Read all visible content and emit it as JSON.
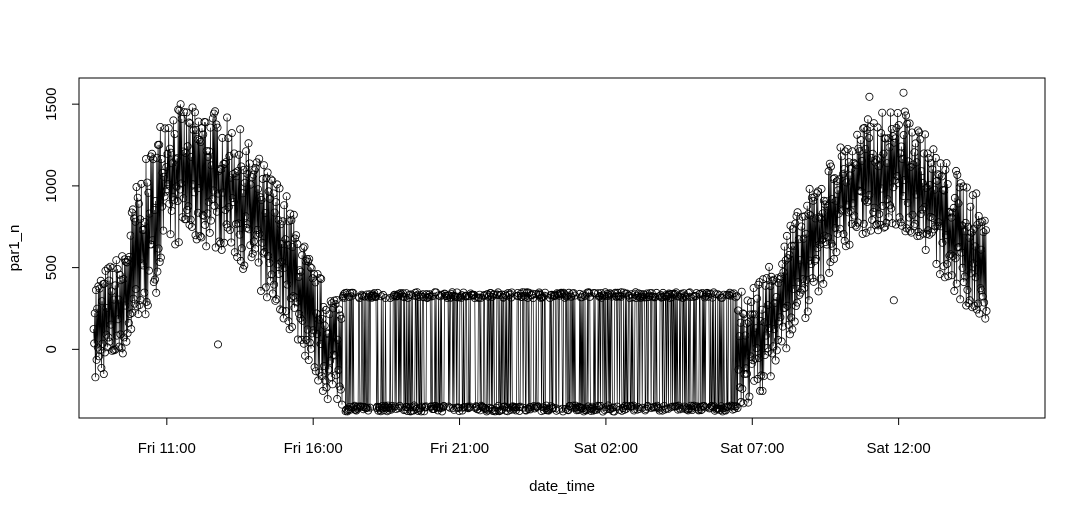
{
  "chart_data": {
    "type": "scatter",
    "style": "points connected by lines (type 'b')",
    "title": "",
    "xlabel": "date_time",
    "ylabel": "par1_n",
    "x_axis": {
      "kind": "datetime",
      "range": [
        "Fri 08:00",
        "Sat 17:00"
      ],
      "ticks": [
        {
          "value": "Fri 11:00",
          "label": "Fri 11:00"
        },
        {
          "value": "Fri 16:00",
          "label": "Fri 16:00"
        },
        {
          "value": "Fri 21:00",
          "label": "Fri 21:00"
        },
        {
          "value": "Sat 02:00",
          "label": "Sat 02:00"
        },
        {
          "value": "Sat 07:00",
          "label": "Sat 07:00"
        },
        {
          "value": "Sat 12:00",
          "label": "Sat 12:00"
        }
      ]
    },
    "y_axis": {
      "range": [
        -420,
        1660
      ],
      "ticks": [
        {
          "value": 0,
          "label": "0"
        },
        {
          "value": 500,
          "label": "500"
        },
        {
          "value": 1000,
          "label": "1000"
        },
        {
          "value": 1500,
          "label": "1500"
        }
      ]
    },
    "grid": false,
    "legend": "none",
    "series": [
      {
        "x_range": [
          "Fri 08:30",
          "Sat 15:00"
        ],
        "upper_envelope": [
          {
            "x": "Fri 08:30",
            "y": 430
          },
          {
            "x": "Fri 09:00",
            "y": 520
          },
          {
            "x": "Fri 09:30",
            "y": 600
          },
          {
            "x": "Fri 10:00",
            "y": 1050
          },
          {
            "x": "Fri 10:30",
            "y": 1250
          },
          {
            "x": "Fri 11:00",
            "y": 1540
          },
          {
            "x": "Fri 11:30",
            "y": 1500
          },
          {
            "x": "Fri 12:00",
            "y": 1480
          },
          {
            "x": "Fri 12:30",
            "y": 1490
          },
          {
            "x": "Fri 13:00",
            "y": 1430
          },
          {
            "x": "Fri 13:30",
            "y": 1350
          },
          {
            "x": "Fri 14:00",
            "y": 1220
          },
          {
            "x": "Fri 14:30",
            "y": 1100
          },
          {
            "x": "Fri 15:00",
            "y": 1000
          },
          {
            "x": "Fri 15:30",
            "y": 760
          },
          {
            "x": "Fri 16:00",
            "y": 510
          },
          {
            "x": "Fri 16:30",
            "y": 390
          },
          {
            "x": "Fri 17:00",
            "y": 350
          },
          {
            "x": "Sat 06:30",
            "y": 350
          },
          {
            "x": "Sat 07:00",
            "y": 400
          },
          {
            "x": "Sat 07:30",
            "y": 520
          },
          {
            "x": "Sat 08:00",
            "y": 700
          },
          {
            "x": "Sat 08:30",
            "y": 830
          },
          {
            "x": "Sat 09:00",
            "y": 1000
          },
          {
            "x": "Sat 09:30",
            "y": 1120
          },
          {
            "x": "Sat 10:00",
            "y": 1250
          },
          {
            "x": "Sat 10:30",
            "y": 1340
          },
          {
            "x": "Sat 11:00",
            "y": 1420
          },
          {
            "x": "Sat 11:30",
            "y": 1460
          },
          {
            "x": "Sat 12:00",
            "y": 1490
          },
          {
            "x": "Sat 12:30",
            "y": 1430
          },
          {
            "x": "Sat 13:00",
            "y": 1300
          },
          {
            "x": "Sat 13:30",
            "y": 1180
          },
          {
            "x": "Sat 14:00",
            "y": 1100
          },
          {
            "x": "Sat 14:30",
            "y": 1030
          },
          {
            "x": "Sat 15:00",
            "y": 800
          }
        ],
        "lower_envelope": [
          {
            "x": "Fri 08:30",
            "y": -250
          },
          {
            "x": "Fri 09:00",
            "y": -130
          },
          {
            "x": "Fri 09:30",
            "y": -40
          },
          {
            "x": "Fri 10:00",
            "y": 100
          },
          {
            "x": "Fri 10:30",
            "y": 250
          },
          {
            "x": "Fri 11:00",
            "y": 600
          },
          {
            "x": "Fri 11:30",
            "y": 650
          },
          {
            "x": "Fri 12:00",
            "y": 620
          },
          {
            "x": "Fri 12:30",
            "y": 620
          },
          {
            "x": "Fri 13:00",
            "y": 600
          },
          {
            "x": "Fri 13:30",
            "y": 520
          },
          {
            "x": "Fri 14:00",
            "y": 380
          },
          {
            "x": "Fri 14:30",
            "y": 260
          },
          {
            "x": "Fri 15:00",
            "y": 180
          },
          {
            "x": "Fri 15:30",
            "y": 20
          },
          {
            "x": "Fri 16:00",
            "y": -150
          },
          {
            "x": "Fri 16:30",
            "y": -320
          },
          {
            "x": "Fri 17:00",
            "y": -380
          },
          {
            "x": "Sat 06:30",
            "y": -380
          },
          {
            "x": "Sat 07:00",
            "y": -340
          },
          {
            "x": "Sat 07:30",
            "y": -220
          },
          {
            "x": "Sat 08:00",
            "y": -60
          },
          {
            "x": "Sat 08:30",
            "y": 100
          },
          {
            "x": "Sat 09:00",
            "y": 230
          },
          {
            "x": "Sat 09:30",
            "y": 420
          },
          {
            "x": "Sat 10:00",
            "y": 580
          },
          {
            "x": "Sat 10:30",
            "y": 650
          },
          {
            "x": "Sat 11:00",
            "y": 700
          },
          {
            "x": "Sat 11:30",
            "y": 720
          },
          {
            "x": "Sat 12:00",
            "y": 740
          },
          {
            "x": "Sat 12:30",
            "y": 680
          },
          {
            "x": "Sat 13:00",
            "y": 560
          },
          {
            "x": "Sat 13:30",
            "y": 420
          },
          {
            "x": "Sat 14:00",
            "y": 260
          },
          {
            "x": "Sat 14:30",
            "y": 200
          },
          {
            "x": "Sat 15:00",
            "y": 140
          }
        ],
        "notable_points": [
          {
            "x": "Fri 12:45",
            "y": 30
          },
          {
            "x": "Sat 11:50",
            "y": 300
          },
          {
            "x": "Sat 11:00",
            "y": 1545
          },
          {
            "x": "Sat 12:10",
            "y": 1570
          }
        ]
      }
    ]
  }
}
